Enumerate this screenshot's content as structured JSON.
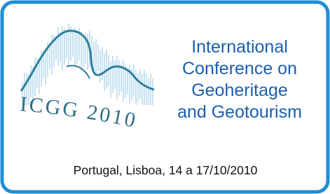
{
  "logo": {
    "text": "ICGG 2010"
  },
  "title": {
    "lines": [
      "International",
      "Conference on",
      "Geoheritage",
      "and Geotourism"
    ]
  },
  "footer": {
    "text": "Portugal, Lisboa, 14 a 17/10/2010"
  }
}
